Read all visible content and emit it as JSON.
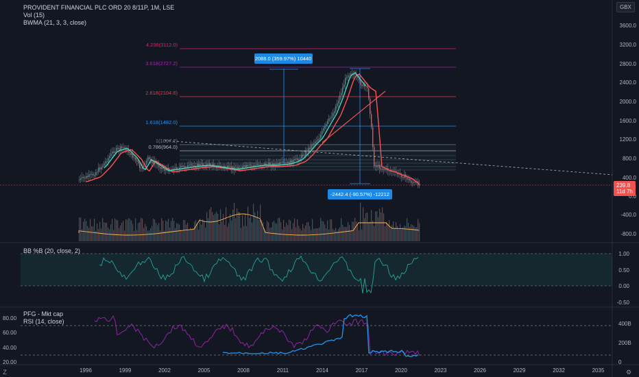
{
  "header": {
    "title": "PROVIDENT FINANCIAL PLC ORD 20 8/11P, 1M, LSE",
    "indicators": [
      "Vol (15)",
      "BWMA (21, 3, 3, close)"
    ],
    "currency": "GBX"
  },
  "price_axis": {
    "ticks": [
      "3600.0",
      "3200.0",
      "2800.0",
      "2400.0",
      "2000.0",
      "1600.0",
      "1200.0",
      "800.0",
      "400.0",
      "0.0",
      "-400.0",
      "-800.0"
    ],
    "last_price": "239.8",
    "countdown": "11d 7h"
  },
  "fib_levels": [
    {
      "label": "4.236(3112.0)",
      "color": "#e91e63"
    },
    {
      "label": "3.618(2727.2)",
      "color": "#9c27b0"
    },
    {
      "label": "2.618(2104.6)",
      "color": "#f23645"
    },
    {
      "label": "1.618(1482.0)",
      "color": "#2196f3"
    },
    {
      "label": "1(1097.2)",
      "color": "#787b86"
    },
    {
      "label": "0.786(964.0)",
      "color": "#b2b5be"
    }
  ],
  "measure_up": {
    "label": "2088.0 (359.97%) 10440",
    "color": "#1e88e5"
  },
  "measure_down": {
    "label": "-2442.4 (-90.57%) -12212",
    "color": "#1e88e5"
  },
  "pane_bb": {
    "label": "BB %B (20, close, 2)",
    "ticks": [
      "1.00",
      "0.50",
      "0.00",
      "-0.50"
    ]
  },
  "pane_rsi": {
    "labels": [
      "PFG - Mkt cap",
      "RSI (14, close)"
    ],
    "left_ticks": [
      "80.00",
      "60.00",
      "40.00",
      "20.00"
    ],
    "right_ticks": [
      "400B",
      "200B",
      "0"
    ]
  },
  "time_axis": [
    "1996",
    "1999",
    "2002",
    "2005",
    "2008",
    "2011",
    "2014",
    "2017",
    "2020",
    "2023",
    "2026",
    "2029",
    "2032",
    "2035"
  ],
  "colors": {
    "background": "#131722",
    "up": "#26a69a",
    "down": "#ef5350",
    "ma_red": "#ff5252",
    "ma_teal": "#4dd0b8",
    "rsi": "#9c27b0",
    "mktcap": "#2196f3"
  }
}
